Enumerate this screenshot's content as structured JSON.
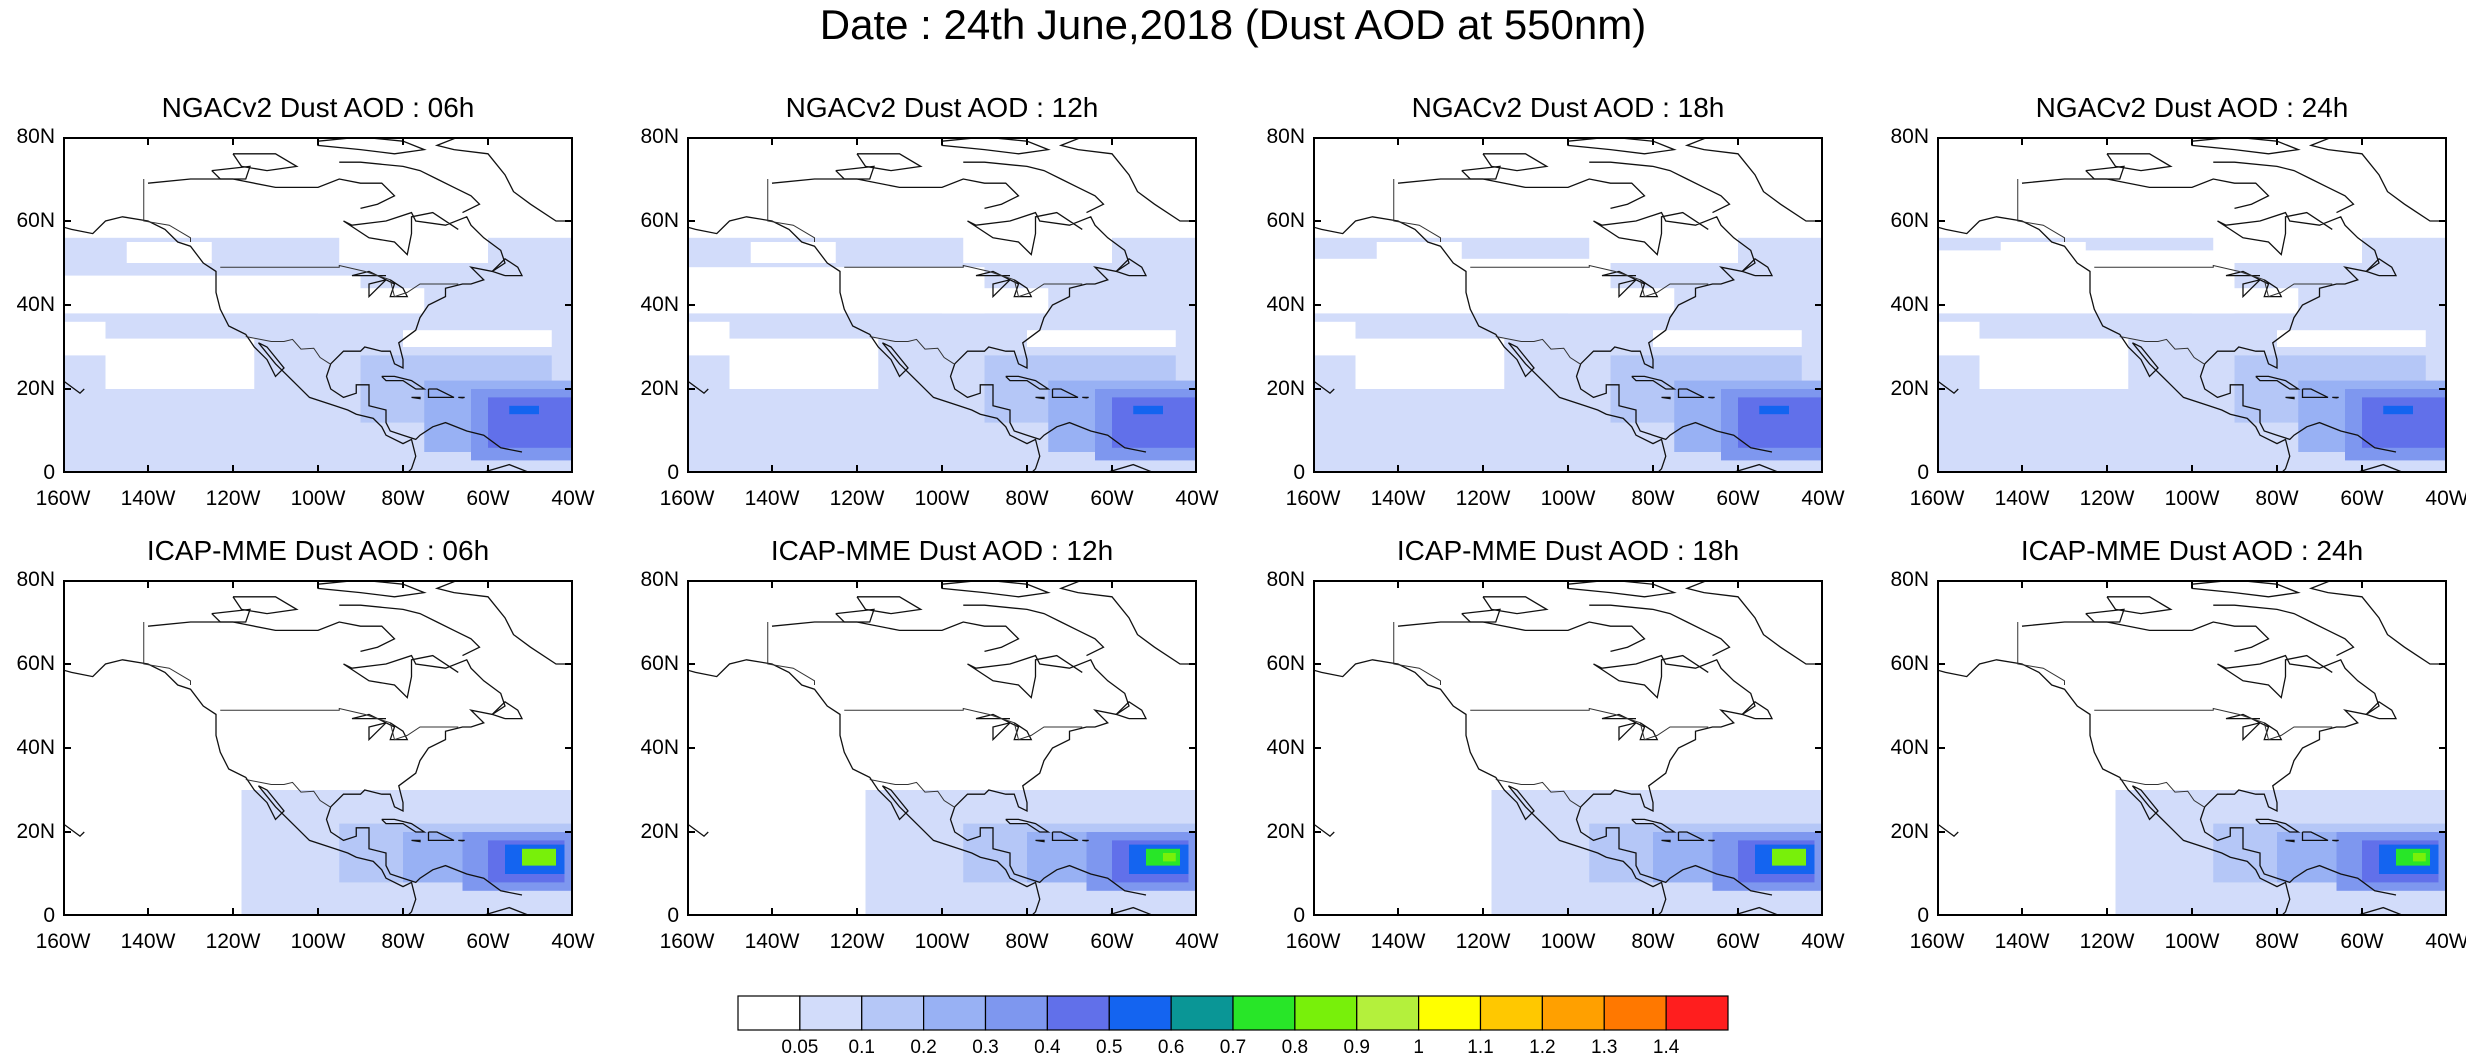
{
  "title": "Date : 24th June,2018 (Dust AOD at 550nm)",
  "panels": [
    {
      "title": "NGACv2 Dust AOD : 06h",
      "model": "NGACv2"
    },
    {
      "title": "NGACv2 Dust AOD : 12h",
      "model": "NGACv2"
    },
    {
      "title": "NGACv2 Dust AOD : 18h",
      "model": "NGACv2"
    },
    {
      "title": "NGACv2 Dust AOD : 24h",
      "model": "NGACv2"
    },
    {
      "title": "ICAP-MME Dust AOD : 06h",
      "model": "ICAP-MME"
    },
    {
      "title": "ICAP-MME Dust AOD : 12h",
      "model": "ICAP-MME"
    },
    {
      "title": "ICAP-MME Dust AOD : 18h",
      "model": "ICAP-MME"
    },
    {
      "title": "ICAP-MME Dust AOD : 24h",
      "model": "ICAP-MME"
    }
  ],
  "axes": {
    "lat_ticks": [
      "80N",
      "60N",
      "40N",
      "20N",
      "0"
    ],
    "lon_ticks": [
      "160W",
      "140W",
      "120W",
      "100W",
      "80W",
      "60W",
      "40W"
    ]
  },
  "colorbar": {
    "labels": [
      "0.05",
      "0.1",
      "0.2",
      "0.3",
      "0.4",
      "0.5",
      "0.6",
      "0.7",
      "0.8",
      "0.9",
      "1",
      "1.1",
      "1.2",
      "1.3",
      "1.4"
    ],
    "colors": [
      "#ffffff",
      "#d2dcfa",
      "#b5c7f7",
      "#98b1f4",
      "#7e97ef",
      "#6170ea",
      "#1464f0",
      "#0a9696",
      "#28e628",
      "#78f00a",
      "#b4f03c",
      "#ffff00",
      "#ffc800",
      "#ffa000",
      "#ff7800",
      "#ff1e1e"
    ]
  }
}
